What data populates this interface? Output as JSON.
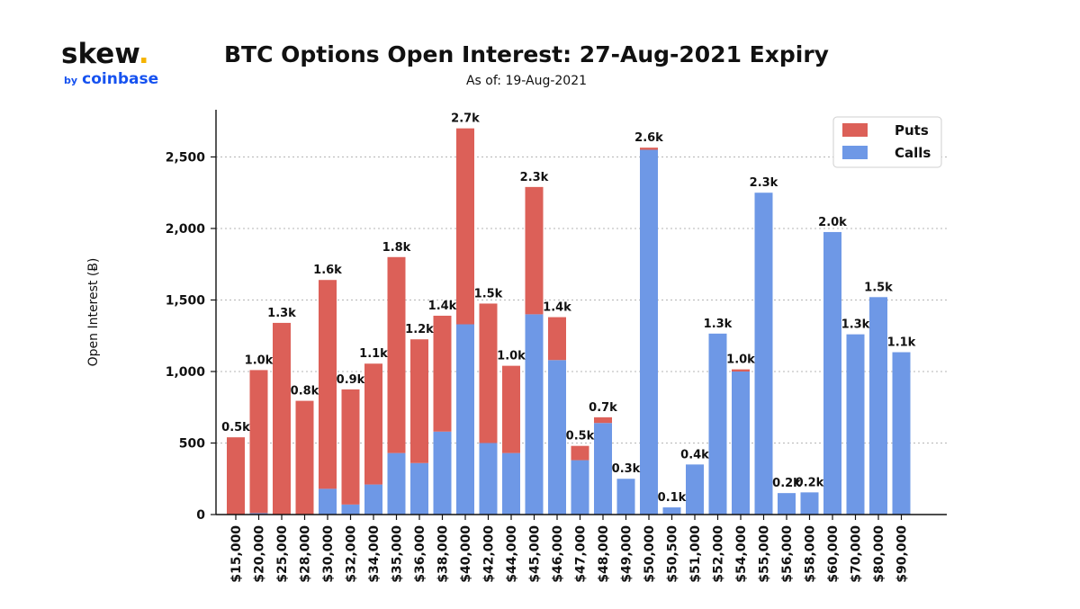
{
  "logo": {
    "word": "skew",
    "dot": ".",
    "by": "by",
    "brand": "coinbase"
  },
  "chart_data": {
    "type": "bar",
    "stacked": true,
    "title": "BTC Options Open Interest: 27-Aug-2021 Expiry",
    "subtitle": "As of: 19-Aug-2021",
    "xlabel": "",
    "ylabel": "Open Interest (Ƀ)",
    "ylim": [
      0,
      2830
    ],
    "yticks": [
      0,
      500,
      1000,
      1500,
      2000,
      2500
    ],
    "ytick_labels": [
      "0",
      "500",
      "1,000",
      "1,500",
      "2,000",
      "2,500"
    ],
    "grid": "horizontal dotted",
    "legend_position": "top-right",
    "categories": [
      "$15,000",
      "$20,000",
      "$25,000",
      "$28,000",
      "$30,000",
      "$32,000",
      "$34,000",
      "$35,000",
      "$36,000",
      "$38,000",
      "$40,000",
      "$42,000",
      "$44,000",
      "$45,000",
      "$46,000",
      "$47,000",
      "$48,000",
      "$49,000",
      "$50,000",
      "$50,500",
      "$51,000",
      "$52,000",
      "$54,000",
      "$55,000",
      "$56,000",
      "$58,000",
      "$60,000",
      "$70,000",
      "$80,000",
      "$90,000"
    ],
    "series": [
      {
        "name": "Calls",
        "color": "#6e98e6",
        "values": [
          0,
          10,
          0,
          0,
          180,
          70,
          210,
          430,
          360,
          580,
          1330,
          500,
          430,
          1400,
          1080,
          380,
          640,
          250,
          2550,
          50,
          350,
          1265,
          1000,
          2250,
          150,
          155,
          1975,
          1260,
          1520,
          1135
        ]
      },
      {
        "name": "Puts",
        "color": "#dc6058",
        "values": [
          540,
          1000,
          1340,
          795,
          1460,
          805,
          845,
          1370,
          865,
          810,
          1370,
          975,
          610,
          890,
          300,
          100,
          40,
          0,
          15,
          0,
          0,
          0,
          15,
          0,
          0,
          0,
          0,
          0,
          0,
          0
        ]
      }
    ],
    "data_labels": [
      "0.5k",
      "1.0k",
      "1.3k",
      "0.8k",
      "1.6k",
      "0.9k",
      "1.1k",
      "1.8k",
      "1.2k",
      "1.4k",
      "2.7k",
      "1.5k",
      "1.0k",
      "2.3k",
      "1.4k",
      "0.5k",
      "0.7k",
      "0.3k",
      "2.6k",
      "0.1k",
      "0.4k",
      "1.3k",
      "1.0k",
      "2.3k",
      "0.2k",
      "0.2k",
      "2.0k",
      "1.3k",
      "1.5k",
      "1.1k"
    ],
    "legend": [
      {
        "label": "Puts",
        "color": "#dc6058"
      },
      {
        "label": "Calls",
        "color": "#6e98e6"
      }
    ]
  }
}
